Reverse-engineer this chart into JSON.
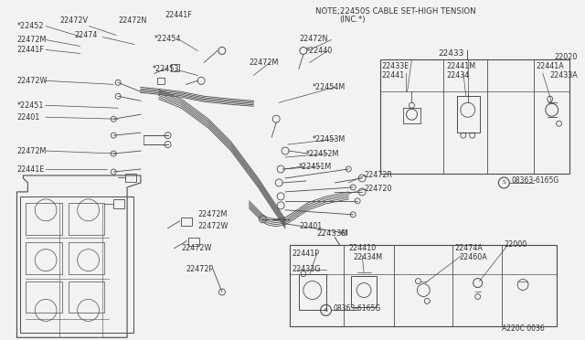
{
  "bg_color": "#f2f2f2",
  "line_color": "#4a4a4a",
  "text_color": "#333333",
  "fig_width": 6.4,
  "fig_height": 3.72,
  "dpi": 100,
  "note_line1": "NOTE;22450S CABLE SET-HIGH TENSION",
  "note_line2": "(INC.*)",
  "diagram_code": "A220C 0036"
}
